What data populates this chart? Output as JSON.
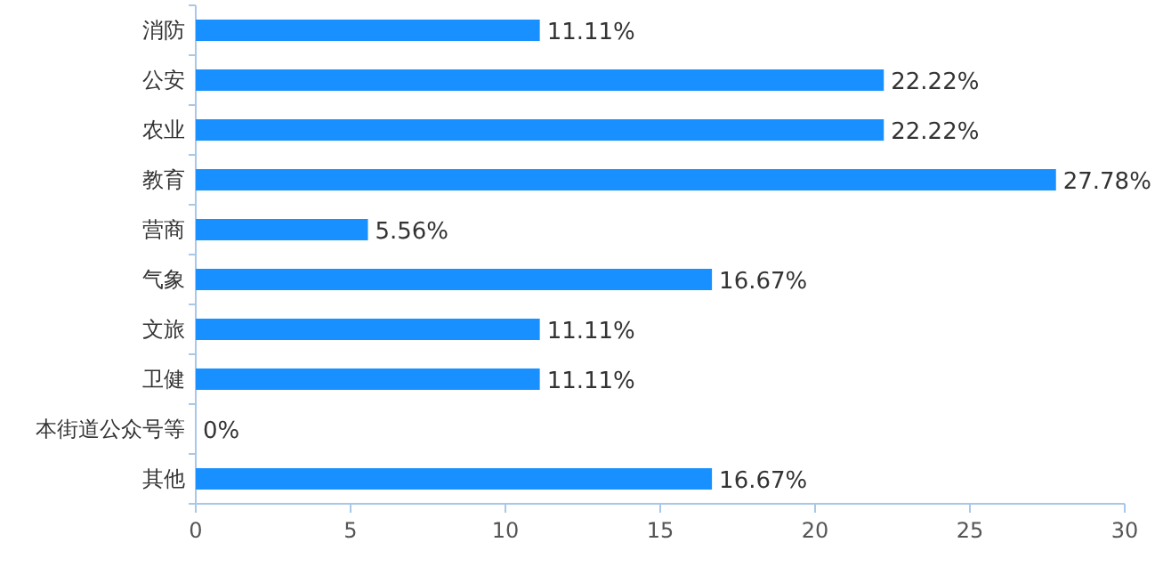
{
  "chart_data": {
    "type": "bar",
    "orientation": "horizontal",
    "categories": [
      "消防",
      "公安",
      "农业",
      "教育",
      "营商",
      "气象",
      "文旅",
      "卫健",
      "本街道公众号等",
      "其他"
    ],
    "values": [
      11.11,
      22.22,
      22.22,
      27.78,
      5.56,
      16.67,
      11.11,
      11.11,
      0,
      16.67
    ],
    "value_labels": [
      "11.11%",
      "22.22%",
      "22.22%",
      "27.78%",
      "5.56%",
      "16.67%",
      "11.11%",
      "11.11%",
      "0%",
      "16.67%"
    ],
    "color": "#1890ff",
    "xlim": [
      0,
      30
    ],
    "xticks": [
      0,
      5,
      10,
      15,
      20,
      25,
      30
    ]
  }
}
